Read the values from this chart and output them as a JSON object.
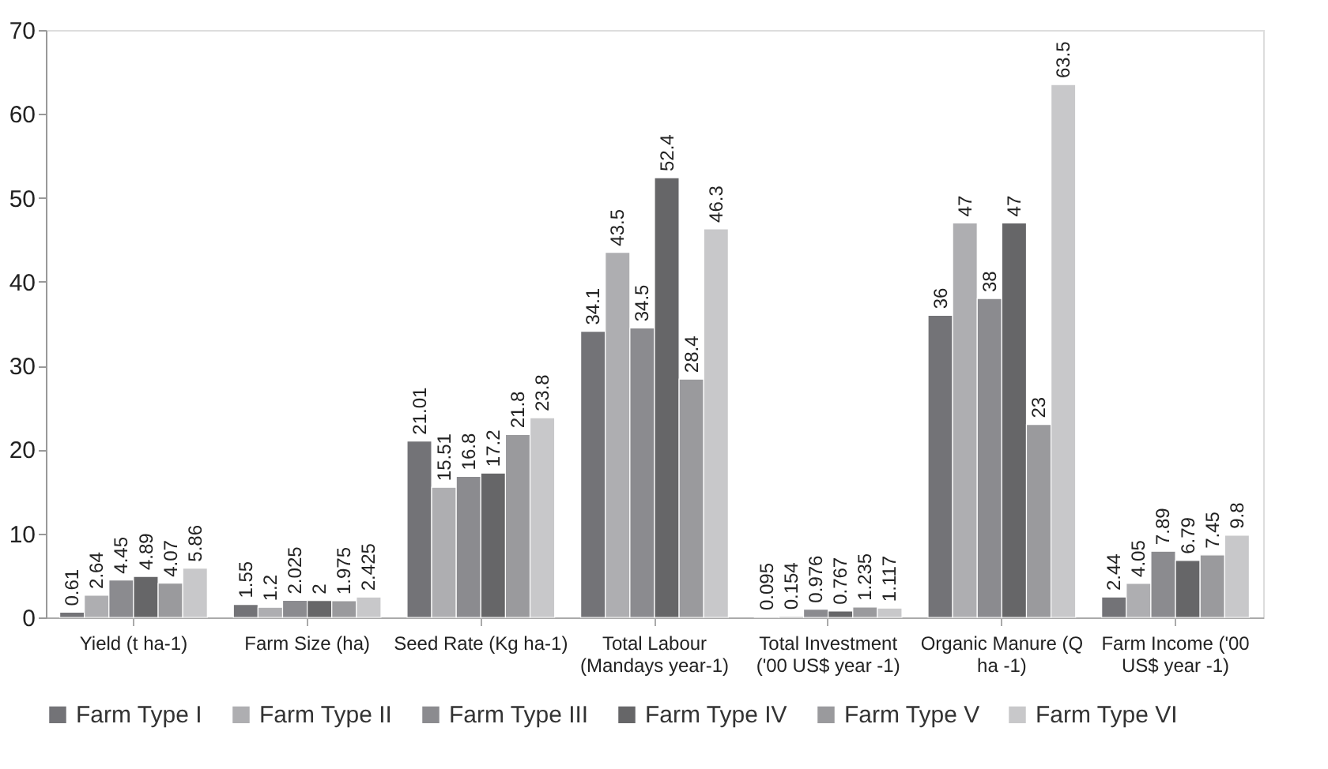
{
  "chart_data": {
    "type": "bar",
    "categories": [
      "Yield (t ha-1)",
      "Farm Size (ha)",
      "Seed Rate (Kg ha-1)",
      "Total Labour (Mandays year-1)",
      "Total Investment ('00 US$ year -1)",
      "Organic Manure (Q ha -1)",
      "Farm Income ('00 US$ year -1)"
    ],
    "series": [
      {
        "name": "Farm Type I",
        "color": "#737377",
        "values": [
          0.61,
          1.55,
          21.01,
          34.1,
          0.095,
          36,
          2.44
        ]
      },
      {
        "name": "Farm Type II",
        "color": "#aeaeb1",
        "values": [
          2.64,
          1.2,
          15.51,
          43.5,
          0.154,
          47,
          4.05
        ]
      },
      {
        "name": "Farm Type III",
        "color": "#8b8b8f",
        "values": [
          4.45,
          2.025,
          16.8,
          34.5,
          0.976,
          38,
          7.89
        ]
      },
      {
        "name": "Farm Type IV",
        "color": "#666668",
        "values": [
          4.89,
          2,
          17.2,
          52.4,
          0.767,
          47,
          6.79
        ]
      },
      {
        "name": "Farm Type V",
        "color": "#9a9a9d",
        "values": [
          4.07,
          1.975,
          21.8,
          28.4,
          1.235,
          23,
          7.45
        ]
      },
      {
        "name": "Farm Type VI",
        "color": "#c8c8ca",
        "values": [
          5.86,
          2.425,
          23.8,
          46.3,
          1.117,
          63.5,
          9.8
        ]
      }
    ],
    "ylim": [
      0,
      70
    ],
    "yticks": [
      0,
      10,
      20,
      30,
      40,
      50,
      60,
      70
    ],
    "data_labels": true,
    "grid": false,
    "legend": "bottom"
  }
}
